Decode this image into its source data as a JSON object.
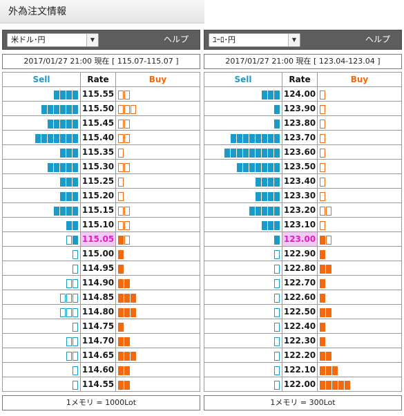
{
  "page_title": "外為注文情報",
  "column_labels": {
    "sell": "Sell",
    "rate": "Rate",
    "buy": "Buy"
  },
  "colors": {
    "sell": "#1b9bc9",
    "buy": "#f26a10",
    "current_rate_bg": "#f4c8f4",
    "current_rate_text": "#e01fc2",
    "header_bg": "#5d5d5d"
  },
  "panels": [
    {
      "pair_select": "米ドル･円",
      "help_label": "ヘルプ",
      "datetime": "2017/01/27  21:00",
      "status_label": "現在",
      "quote_range": "[ 115.07-115.07 ]",
      "footer": "1メモリ = 1000Lot",
      "current_rate": "115.05",
      "rows": [
        {
          "rate": "115.55",
          "sell": 4,
          "sell_hollow": 0,
          "buy": 0,
          "buy_hollow": 2
        },
        {
          "rate": "115.50",
          "sell": 6,
          "sell_hollow": 0,
          "buy": 0,
          "buy_hollow": 3
        },
        {
          "rate": "115.45",
          "sell": 5,
          "sell_hollow": 0,
          "buy": 0,
          "buy_hollow": 2
        },
        {
          "rate": "115.40",
          "sell": 7,
          "sell_hollow": 0,
          "buy": 0,
          "buy_hollow": 2
        },
        {
          "rate": "115.35",
          "sell": 3,
          "sell_hollow": 0,
          "buy": 0,
          "buy_hollow": 1
        },
        {
          "rate": "115.30",
          "sell": 5,
          "sell_hollow": 0,
          "buy": 0,
          "buy_hollow": 2
        },
        {
          "rate": "115.25",
          "sell": 3,
          "sell_hollow": 0,
          "buy": 0,
          "buy_hollow": 1
        },
        {
          "rate": "115.20",
          "sell": 3,
          "sell_hollow": 0,
          "buy": 0,
          "buy_hollow": 1
        },
        {
          "rate": "115.15",
          "sell": 4,
          "sell_hollow": 0,
          "buy": 0,
          "buy_hollow": 2
        },
        {
          "rate": "115.10",
          "sell": 2,
          "sell_hollow": 0,
          "buy": 0,
          "buy_hollow": 2
        },
        {
          "rate": "115.05",
          "sell": 1,
          "sell_hollow": 1,
          "buy": 1,
          "buy_hollow": 1
        },
        {
          "rate": "115.00",
          "sell": 0,
          "sell_hollow": 1,
          "buy": 1,
          "buy_hollow": 0
        },
        {
          "rate": "114.95",
          "sell": 0,
          "sell_hollow": 1,
          "buy": 1,
          "buy_hollow": 0
        },
        {
          "rate": "114.90",
          "sell": 0,
          "sell_hollow": 2,
          "buy": 2,
          "buy_hollow": 0
        },
        {
          "rate": "114.85",
          "sell": 0,
          "sell_hollow": 3,
          "buy": 3,
          "buy_hollow": 0
        },
        {
          "rate": "114.80",
          "sell": 0,
          "sell_hollow": 3,
          "buy": 3,
          "buy_hollow": 0
        },
        {
          "rate": "114.75",
          "sell": 0,
          "sell_hollow": 1,
          "buy": 1,
          "buy_hollow": 0
        },
        {
          "rate": "114.70",
          "sell": 0,
          "sell_hollow": 2,
          "buy": 2,
          "buy_hollow": 0
        },
        {
          "rate": "114.65",
          "sell": 0,
          "sell_hollow": 2,
          "buy": 3,
          "buy_hollow": 0
        },
        {
          "rate": "114.60",
          "sell": 0,
          "sell_hollow": 1,
          "buy": 2,
          "buy_hollow": 0
        },
        {
          "rate": "114.55",
          "sell": 0,
          "sell_hollow": 1,
          "buy": 2,
          "buy_hollow": 0
        }
      ]
    },
    {
      "pair_select": "ﾕｰﾛ･円",
      "help_label": "ヘルプ",
      "datetime": "2017/01/27  21:00",
      "status_label": "現在",
      "quote_range": "[ 123.04-123.04 ]",
      "footer": "1メモリ = 300Lot",
      "current_rate": "123.00",
      "rows": [
        {
          "rate": "124.00",
          "sell": 3,
          "sell_hollow": 0,
          "buy": 0,
          "buy_hollow": 1
        },
        {
          "rate": "123.90",
          "sell": 1,
          "sell_hollow": 0,
          "buy": 0,
          "buy_hollow": 1
        },
        {
          "rate": "123.80",
          "sell": 1,
          "sell_hollow": 0,
          "buy": 0,
          "buy_hollow": 1
        },
        {
          "rate": "123.70",
          "sell": 8,
          "sell_hollow": 0,
          "buy": 0,
          "buy_hollow": 1
        },
        {
          "rate": "123.60",
          "sell": 9,
          "sell_hollow": 0,
          "buy": 0,
          "buy_hollow": 1
        },
        {
          "rate": "123.50",
          "sell": 7,
          "sell_hollow": 0,
          "buy": 0,
          "buy_hollow": 1
        },
        {
          "rate": "123.40",
          "sell": 4,
          "sell_hollow": 0,
          "buy": 0,
          "buy_hollow": 1
        },
        {
          "rate": "123.30",
          "sell": 4,
          "sell_hollow": 0,
          "buy": 0,
          "buy_hollow": 1
        },
        {
          "rate": "123.20",
          "sell": 5,
          "sell_hollow": 0,
          "buy": 0,
          "buy_hollow": 2
        },
        {
          "rate": "123.10",
          "sell": 3,
          "sell_hollow": 0,
          "buy": 0,
          "buy_hollow": 1
        },
        {
          "rate": "123.00",
          "sell": 1,
          "sell_hollow": 0,
          "buy": 1,
          "buy_hollow": 1
        },
        {
          "rate": "122.90",
          "sell": 0,
          "sell_hollow": 1,
          "buy": 1,
          "buy_hollow": 0
        },
        {
          "rate": "122.80",
          "sell": 0,
          "sell_hollow": 1,
          "buy": 2,
          "buy_hollow": 0
        },
        {
          "rate": "122.70",
          "sell": 0,
          "sell_hollow": 1,
          "buy": 1,
          "buy_hollow": 0
        },
        {
          "rate": "122.60",
          "sell": 0,
          "sell_hollow": 1,
          "buy": 1,
          "buy_hollow": 0
        },
        {
          "rate": "122.50",
          "sell": 0,
          "sell_hollow": 1,
          "buy": 2,
          "buy_hollow": 0
        },
        {
          "rate": "122.40",
          "sell": 0,
          "sell_hollow": 1,
          "buy": 1,
          "buy_hollow": 0
        },
        {
          "rate": "122.30",
          "sell": 0,
          "sell_hollow": 1,
          "buy": 1,
          "buy_hollow": 0
        },
        {
          "rate": "122.20",
          "sell": 0,
          "sell_hollow": 1,
          "buy": 2,
          "buy_hollow": 0
        },
        {
          "rate": "122.10",
          "sell": 0,
          "sell_hollow": 1,
          "buy": 3,
          "buy_hollow": 0
        },
        {
          "rate": "122.00",
          "sell": 0,
          "sell_hollow": 1,
          "buy": 5,
          "buy_hollow": 0
        }
      ]
    }
  ]
}
